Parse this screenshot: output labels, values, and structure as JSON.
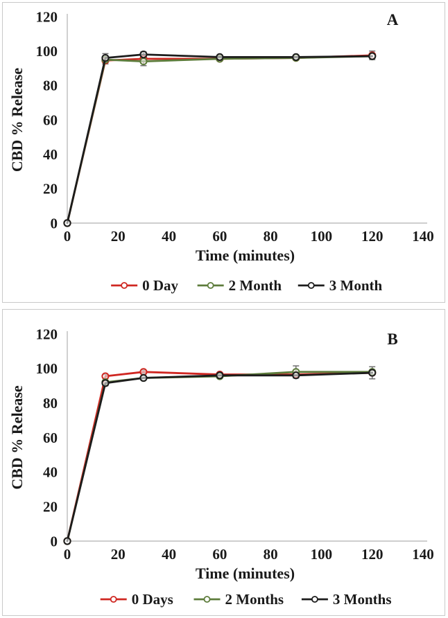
{
  "figure": {
    "background": "#ffffff",
    "panel_border_color": "#c9c9c9",
    "text_color": "#1a1a1a",
    "axis_color": "#bdbdbd",
    "error_bar_color": "#6f6f6f",
    "series_colors": {
      "red": "#cf2721",
      "green": "#5d7c3b",
      "black": "#1c1c1c"
    }
  },
  "chart_data": [
    {
      "type": "line",
      "panel_label": "A",
      "xlabel": "Time (minutes)",
      "ylabel": "CBD % Release",
      "x": [
        0,
        15,
        30,
        60,
        90,
        120
      ],
      "xlim": [
        0,
        140
      ],
      "ylim": [
        0,
        120
      ],
      "xticks": [
        0,
        20,
        40,
        60,
        80,
        100,
        120,
        140
      ],
      "yticks": [
        0,
        20,
        40,
        60,
        80,
        100,
        120
      ],
      "grid": false,
      "legend_position": "bottom",
      "marker": "open-circle",
      "series": [
        {
          "name": "0 Day",
          "color": "red",
          "values": [
            0,
            94.5,
            95.5,
            95.5,
            96.0,
            97.5
          ],
          "errors": [
            0,
            2.0,
            1.0,
            1.0,
            1.0,
            2.5
          ]
        },
        {
          "name": "2 Month",
          "color": "green",
          "values": [
            0,
            95.0,
            94.0,
            95.5,
            96.0,
            97.0
          ],
          "errors": [
            0,
            1.5,
            2.5,
            1.0,
            1.0,
            1.0
          ]
        },
        {
          "name": "3 Month",
          "color": "black",
          "values": [
            0,
            96.0,
            98.0,
            96.5,
            96.5,
            97.0
          ],
          "errors": [
            0,
            2.5,
            1.5,
            1.0,
            1.0,
            1.0
          ]
        }
      ]
    },
    {
      "type": "line",
      "panel_label": "B",
      "xlabel": "Time (minutes)",
      "ylabel": "CBD % Release",
      "x": [
        0,
        15,
        30,
        60,
        90,
        120
      ],
      "xlim": [
        0,
        140
      ],
      "ylim": [
        0,
        120
      ],
      "xticks": [
        0,
        20,
        40,
        60,
        80,
        100,
        120,
        140
      ],
      "yticks": [
        0,
        20,
        40,
        60,
        80,
        100,
        120
      ],
      "grid": false,
      "legend_position": "bottom",
      "marker": "open-circle",
      "series": [
        {
          "name": "0 Days",
          "color": "red",
          "values": [
            0,
            95.5,
            98.0,
            96.5,
            96.5,
            97.5
          ],
          "errors": [
            0,
            1.0,
            1.0,
            1.0,
            1.0,
            1.0
          ]
        },
        {
          "name": "2 Months",
          "color": "green",
          "values": [
            0,
            92.0,
            94.5,
            95.5,
            98.0,
            98.0
          ],
          "errors": [
            0,
            1.0,
            1.0,
            1.0,
            3.5,
            1.0
          ]
        },
        {
          "name": "3 Months",
          "color": "black",
          "values": [
            0,
            91.5,
            94.5,
            96.0,
            96.0,
            97.5
          ],
          "errors": [
            0,
            1.5,
            1.0,
            1.0,
            1.5,
            3.5
          ]
        }
      ]
    }
  ]
}
